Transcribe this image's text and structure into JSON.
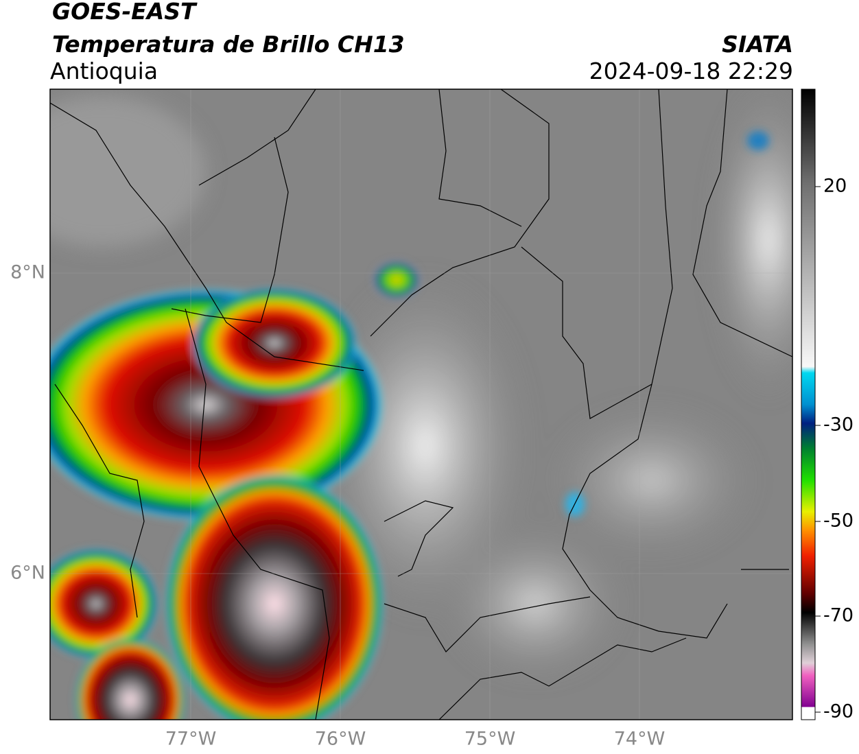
{
  "header": {
    "title": "GOES-EAST",
    "subtitle": "Temperatura de Brillo CH13",
    "region": "Antioquia",
    "source": "SIATA",
    "datetime": "2024-09-18 22:29"
  },
  "map": {
    "lat_labels": [
      "8°N",
      "6°N"
    ],
    "lon_labels": [
      "77°W",
      "76°W",
      "75°W",
      "74°W"
    ]
  },
  "colorbar": {
    "ticks": [
      20,
      -30,
      -50,
      -70,
      -90
    ]
  }
}
